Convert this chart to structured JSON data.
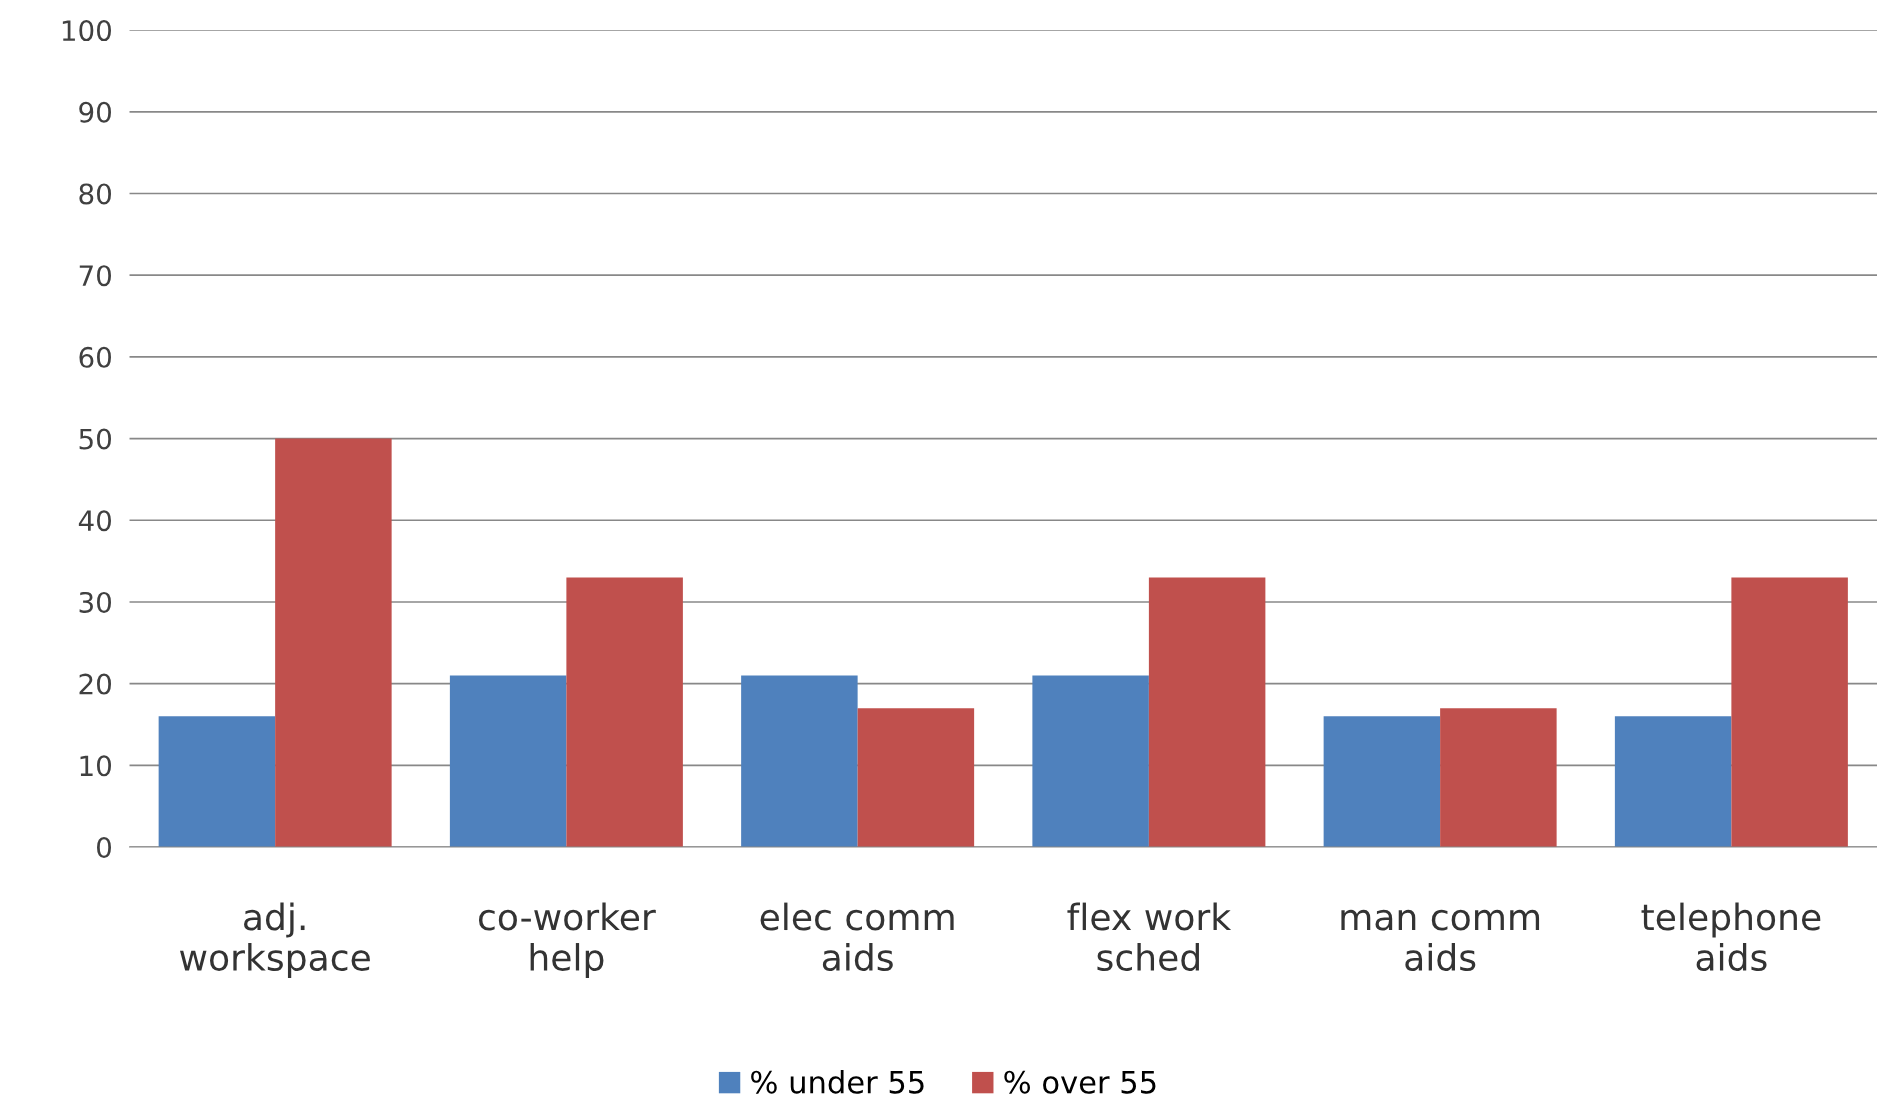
{
  "chart_data": {
    "type": "bar",
    "categories": [
      "adj.\nworkspace",
      "co-worker\nhelp",
      "elec comm\naids",
      "flex work\nsched",
      "man comm\naids",
      "telephone\naids"
    ],
    "series": [
      {
        "name": "% under 55",
        "color": "#4f81bd",
        "values": [
          16,
          21,
          21,
          21,
          16,
          16
        ]
      },
      {
        "name": "% over 55",
        "color": "#c0504d",
        "values": [
          50,
          33,
          17,
          33,
          17,
          33
        ]
      }
    ],
    "ylim": [
      0,
      100
    ],
    "yticks": [
      0,
      10,
      20,
      30,
      40,
      50,
      60,
      70,
      80,
      90,
      100
    ],
    "grid": "y",
    "legend": "bottom"
  }
}
